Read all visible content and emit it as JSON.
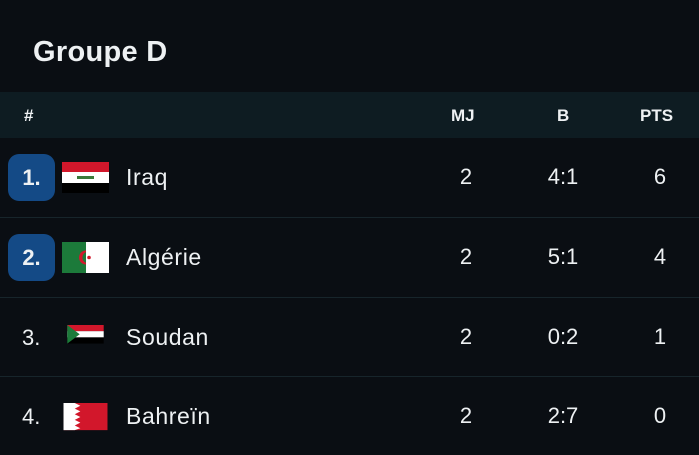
{
  "title": "Groupe D",
  "columns": {
    "rank": "#",
    "played": "MJ",
    "goals": "B",
    "points": "PTS"
  },
  "rows": [
    {
      "rank": "1.",
      "team": "Iraq",
      "flag": "iraq-flag",
      "played": "2",
      "goals": "4:1",
      "points": "6",
      "highlight": true
    },
    {
      "rank": "2.",
      "team": "Algérie",
      "flag": "algeria-flag",
      "played": "2",
      "goals": "5:1",
      "points": "4",
      "highlight": true
    },
    {
      "rank": "3.",
      "team": "Soudan",
      "flag": "sudan-flag",
      "played": "2",
      "goals": "0:2",
      "points": "1",
      "highlight": false
    },
    {
      "rank": "4.",
      "team": "Bahreïn",
      "flag": "bahrain-flag",
      "played": "2",
      "goals": "2:7",
      "points": "0",
      "highlight": false
    }
  ],
  "colors": {
    "background": "#0a0e13",
    "header": "#0e1c22",
    "qualified_badge": "#144a86"
  }
}
